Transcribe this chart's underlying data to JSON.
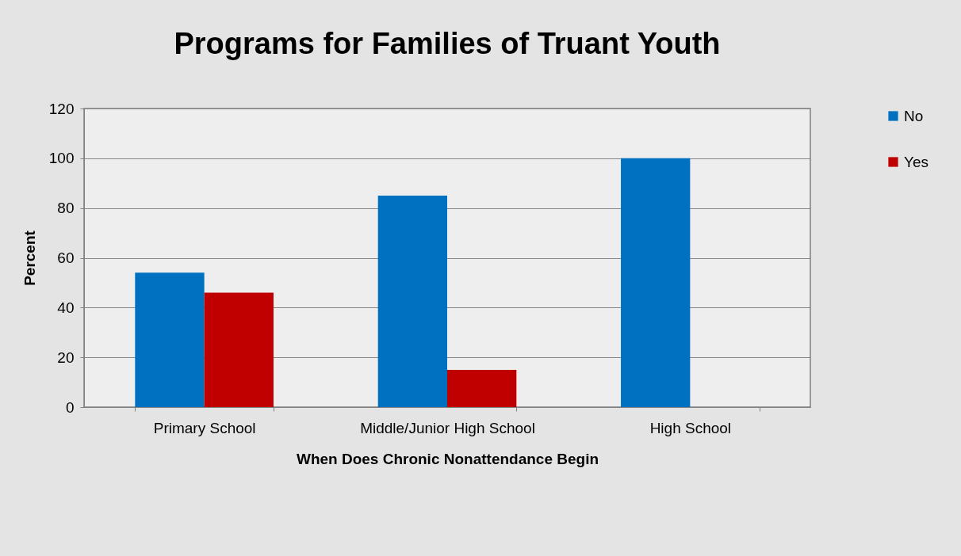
{
  "chart_data": {
    "type": "bar",
    "title": "Programs for Families of Truant Youth",
    "xlabel": "When Does Chronic Nonattendance Begin",
    "ylabel": "Percent",
    "categories": [
      "Primary School",
      "Middle/Junior High School",
      "High School"
    ],
    "series": [
      {
        "name": "No",
        "color": "#0070c0",
        "values": [
          54,
          85,
          100
        ]
      },
      {
        "name": "Yes",
        "color": "#c00000",
        "values": [
          46,
          15,
          null
        ]
      }
    ],
    "ylim": [
      0,
      120
    ],
    "yticks": [
      0,
      20,
      40,
      60,
      80,
      100,
      120
    ],
    "grid": "y",
    "legend": "right"
  }
}
